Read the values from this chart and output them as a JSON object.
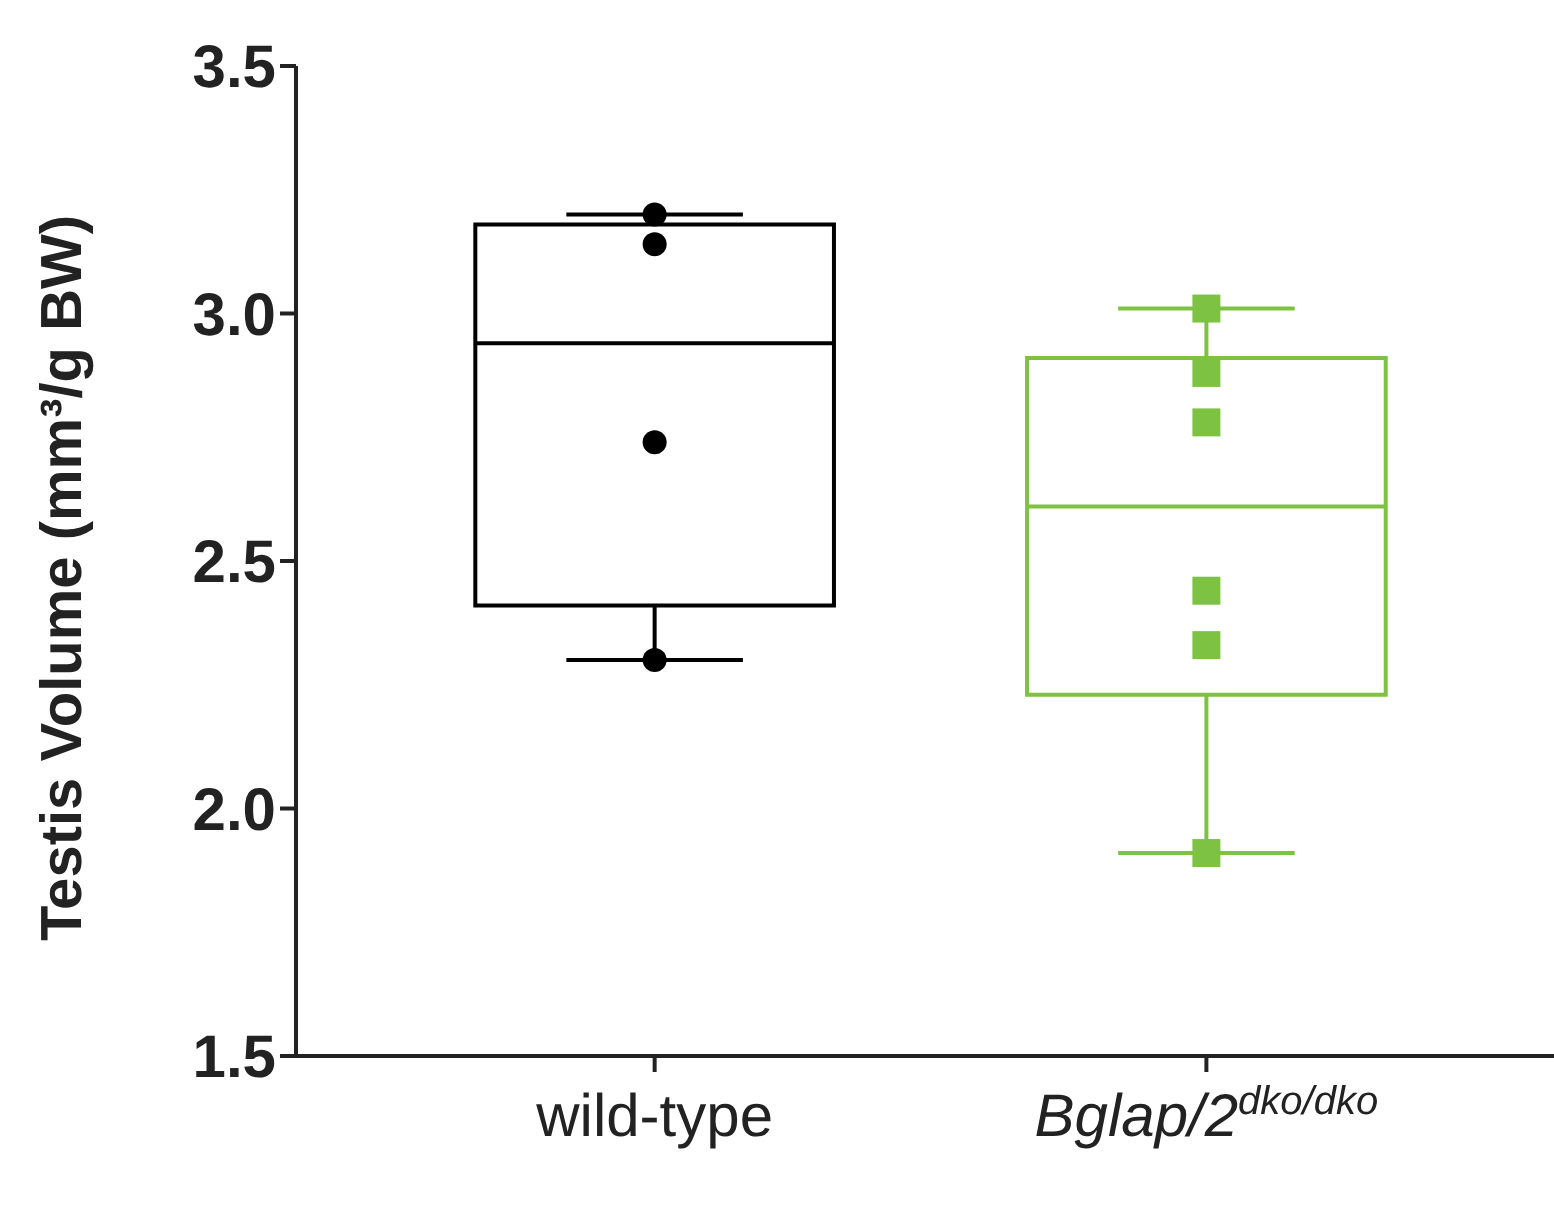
{
  "chart_data": {
    "type": "box",
    "ylabel": "Testis Volume (mm³/g BW)",
    "categories": [
      "wild-type",
      "Bglap/2$^{dko/dko}$"
    ],
    "colors": [
      "#000000",
      "#7dc242"
    ],
    "boxes": [
      {
        "low": 2.3,
        "q1": 2.41,
        "median": 2.94,
        "q3": 3.18,
        "high": 3.2
      },
      {
        "low": 1.91,
        "q1": 2.23,
        "median": 2.61,
        "q3": 2.91,
        "high": 3.01
      }
    ],
    "series": [
      {
        "type": "scatter",
        "color": "#000000",
        "marker": "circle",
        "x": [
          "wild-type",
          "wild-type",
          "wild-type",
          "wild-type"
        ],
        "values": [
          3.2,
          3.14,
          2.74,
          2.3
        ]
      },
      {
        "type": "scatter",
        "color": "#7dc242",
        "marker": "square",
        "x": [
          "Bglap/2$^{dko/dko}$",
          "Bglap/2$^{dko/dko}$",
          "Bglap/2$^{dko/dko}$",
          "Bglap/2$^{dko/dko}$",
          "Bglap/2$^{dko/dko}$",
          "Bglap/2$^{dko/dko}$"
        ],
        "values": [
          3.01,
          2.88,
          2.78,
          2.44,
          2.33,
          1.91
        ]
      }
    ],
    "ylim": [
      1.5,
      3.5
    ],
    "yticks": [
      {
        "value": 1.5,
        "label": "1.5"
      },
      {
        "value": 2,
        "label": "2.0"
      },
      {
        "value": 2.5,
        "label": "2.5"
      },
      {
        "value": 3,
        "label": "3.0"
      },
      {
        "value": 3.5,
        "label": "3.5"
      }
    ],
    "grid": false,
    "legend": false
  }
}
